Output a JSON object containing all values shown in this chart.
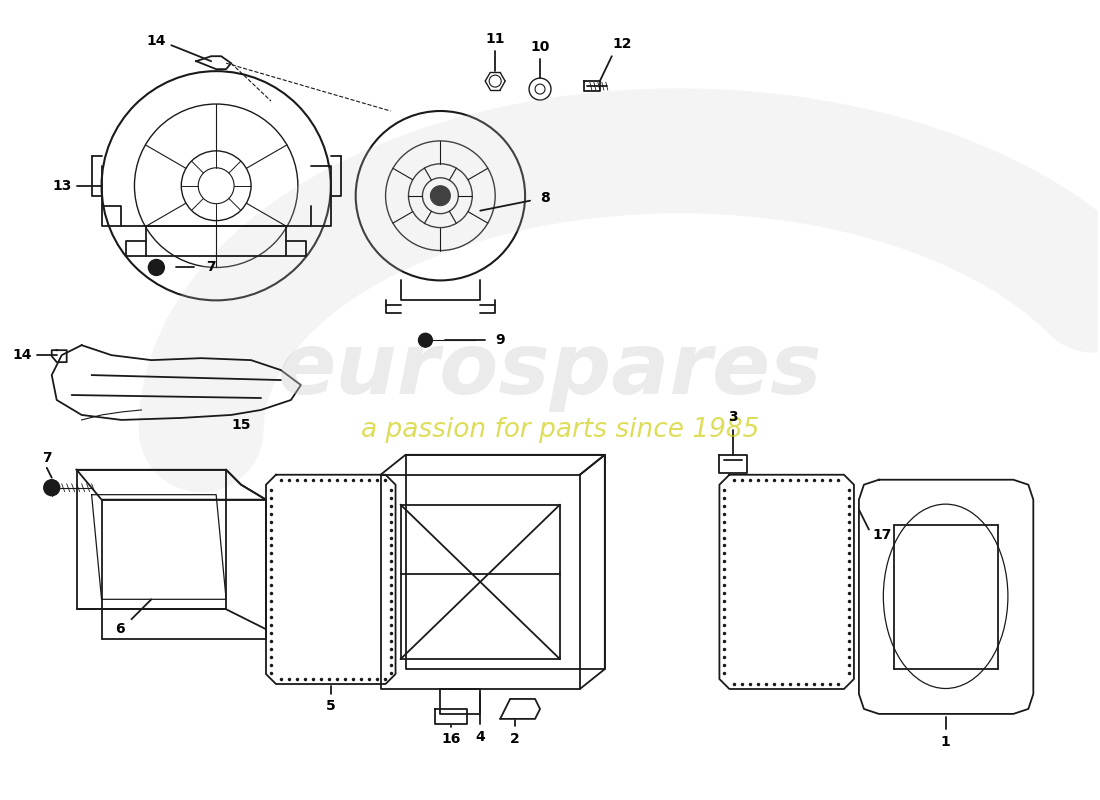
{
  "bg_color": "#ffffff",
  "line_color": "#1a1a1a",
  "watermark_color1": "#cccccc",
  "watermark_color2": "#cccc00",
  "fig_width": 11.0,
  "fig_height": 8.0,
  "dpi": 100
}
